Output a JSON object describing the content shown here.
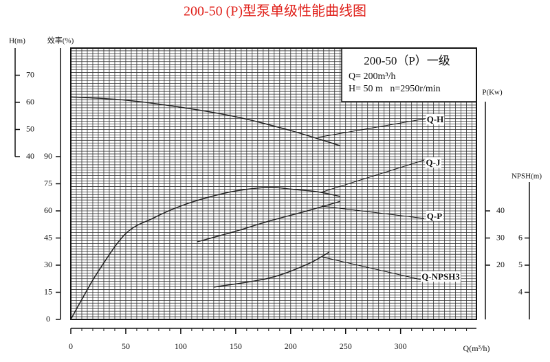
{
  "chart_data": {
    "type": "line",
    "title": "200-50 (P)型泵单级性能曲线图",
    "x_label": "Q(m³/h)",
    "xlim": [
      0,
      369
    ],
    "xticks": [
      0,
      50,
      100,
      150,
      200,
      250,
      300
    ],
    "x_grid_step": 5,
    "y_grid_step": 1.5,
    "grid": true,
    "info": [
      "200-50（P）一级",
      "Q= 200m³/h",
      "H= 50 m   n=2950r/min"
    ],
    "y_axes": [
      {
        "name": "H(m)",
        "lim": [
          -20,
          80
        ],
        "ticks": [
          40,
          50,
          60,
          70
        ]
      },
      {
        "name": "效率(%)",
        "lim": [
          0,
          150
        ],
        "ticks": [
          0,
          15,
          30,
          45,
          60,
          75,
          90
        ]
      },
      {
        "name": "P(Kw)",
        "lim": [
          0,
          100
        ],
        "ticks": [
          20,
          30,
          40
        ]
      },
      {
        "name": "NPSH(m)",
        "lim": [
          3,
          13
        ],
        "ticks": [
          4,
          5,
          6
        ]
      }
    ],
    "series": [
      {
        "name": "Q-H",
        "axis": 0,
        "color": "#222222",
        "x": [
          0,
          50,
          100,
          150,
          200,
          245
        ],
        "values": [
          62,
          60.8,
          58.2,
          54.7,
          49.6,
          44
        ]
      },
      {
        "name": "Q-J",
        "axis": 1,
        "color": "#222222",
        "x": [
          0,
          10,
          25,
          50,
          75,
          100,
          125,
          150,
          180,
          200,
          225,
          245
        ],
        "values": [
          0,
          11,
          26.6,
          47.5,
          56,
          62.7,
          67.5,
          71,
          73,
          72,
          70.5,
          68
        ]
      },
      {
        "name": "Q-P",
        "axis": 2,
        "color": "#222222",
        "x": [
          115,
          150,
          180,
          215,
          245
        ],
        "values": [
          28.6,
          32.5,
          36.2,
          40,
          43.5
        ]
      },
      {
        "name": "Q-NPSH3",
        "axis": 3,
        "color": "#222222",
        "x": [
          130,
          180,
          215,
          235
        ],
        "values": [
          4.19,
          4.52,
          5.03,
          5.48
        ]
      }
    ]
  }
}
